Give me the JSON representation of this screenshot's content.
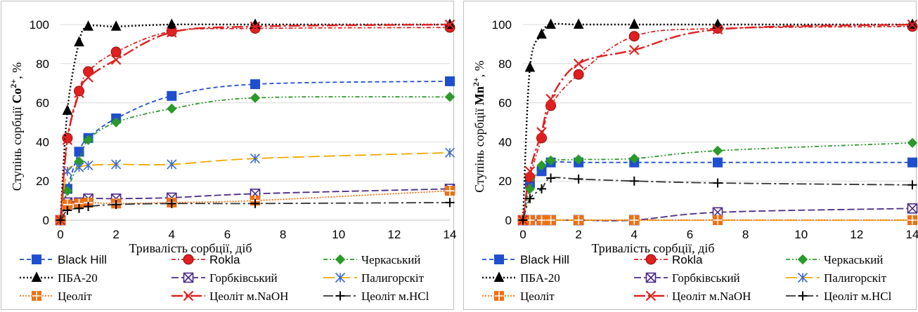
{
  "chart_data": [
    {
      "type": "line",
      "ylabel_prefix": "Ступінь сорбції ",
      "ylabel_ion": "Co",
      "ylabel_sup": "2+",
      "ylabel_suffix": ", %",
      "xlabel": "Тривалість сорбції, діб",
      "xlim": [
        0,
        14
      ],
      "ylim": [
        0,
        100
      ],
      "xticks": [
        0,
        2,
        4,
        6,
        8,
        10,
        12,
        14
      ],
      "yticks": [
        0,
        20,
        40,
        60,
        80,
        100
      ],
      "grid": "horizontal",
      "legend": "bottom",
      "series": [
        {
          "name": "Black Hill",
          "color": "#1f4fd0",
          "marker": "square",
          "dash": "6,4",
          "x": [
            0,
            0.25,
            0.67,
            1,
            2,
            4,
            7,
            14
          ],
          "y": [
            0,
            16,
            35,
            42,
            52,
            63.5,
            69.5,
            71
          ]
        },
        {
          "name": "Rokla",
          "color": "#e02020",
          "marker": "circle",
          "dash": "6,3,2,3",
          "x": [
            0,
            0.25,
            0.67,
            1,
            2,
            4,
            7,
            14
          ],
          "y": [
            0,
            42,
            66,
            76,
            86,
            96.5,
            98,
            98.5
          ]
        },
        {
          "name": "Черкаський",
          "color": "#2a9a2a",
          "marker": "diamond",
          "dash": "6,3,2,3,2,3",
          "x": [
            0,
            0.25,
            0.67,
            1,
            2,
            4,
            7,
            14
          ],
          "y": [
            0,
            15,
            30,
            41,
            50,
            57,
            62.5,
            63
          ]
        },
        {
          "name": "ПБА-20",
          "color": "#000000",
          "marker": "triangle",
          "dash": "2,3",
          "x": [
            0,
            0.25,
            0.67,
            1,
            2,
            4,
            7,
            14
          ],
          "y": [
            0,
            56,
            91,
            99,
            99,
            100,
            100,
            100
          ]
        },
        {
          "name": "Горбківський",
          "color": "#4a2a8a",
          "marker": "xsquare",
          "dash": "10,4",
          "x": [
            0,
            0.25,
            0.67,
            1,
            2,
            4,
            7,
            14
          ],
          "y": [
            0,
            9,
            9,
            11,
            11,
            11.5,
            13.5,
            16
          ]
        },
        {
          "name": "Палигорскіт",
          "color": "#f0a800",
          "marker": "star",
          "dash": "16,6",
          "x": [
            0,
            0.25,
            0.67,
            1,
            2,
            4,
            7,
            14
          ],
          "y": [
            0,
            25,
            27,
            28,
            28.5,
            28.5,
            31.5,
            34.5
          ]
        },
        {
          "name": "Цеоліт",
          "color": "#f07010",
          "marker": "plussquare",
          "dash": "2,2",
          "x": [
            0,
            0.25,
            0.67,
            1,
            2,
            4,
            7,
            14
          ],
          "y": [
            0,
            8,
            8.5,
            9,
            8.5,
            9,
            10,
            15
          ]
        },
        {
          "name": "Цеоліт м.NaOH",
          "color": "#e02020",
          "marker": "x",
          "dash": "16,4,3,4",
          "x": [
            0,
            0.25,
            0.67,
            1,
            2,
            4,
            7,
            14
          ],
          "y": [
            0,
            41,
            65,
            73,
            82,
            96,
            99,
            100
          ]
        },
        {
          "name": "Цеоліт м.HCl",
          "color": "#333333",
          "marker": "plus",
          "dash": "14,4,3,4",
          "x": [
            0,
            0.25,
            0.67,
            1,
            2,
            4,
            7,
            14
          ],
          "y": [
            0,
            5,
            6,
            7,
            8,
            8.5,
            8.5,
            9
          ]
        }
      ]
    },
    {
      "type": "line",
      "ylabel_prefix": "Ступінь сорбції ",
      "ylabel_ion": "Mn",
      "ylabel_sup": "2+",
      "ylabel_suffix": ", %",
      "xlabel": "Тривалість сорбції, діб",
      "xlim": [
        0,
        14
      ],
      "ylim": [
        0,
        100
      ],
      "xticks": [
        0,
        2,
        4,
        6,
        8,
        10,
        12,
        14
      ],
      "yticks": [
        0,
        20,
        40,
        60,
        80,
        100
      ],
      "grid": "horizontal",
      "legend": "bottom",
      "series": [
        {
          "name": "Black Hill",
          "color": "#1f4fd0",
          "marker": "square",
          "dash": "6,4",
          "x": [
            0,
            0.25,
            0.67,
            1,
            2,
            4,
            7,
            14
          ],
          "y": [
            0,
            19,
            25,
            29.5,
            29.5,
            29.5,
            29.5,
            29.5
          ]
        },
        {
          "name": "Rokla",
          "color": "#e02020",
          "marker": "circle",
          "dash": "6,3,2,3",
          "x": [
            0,
            0.25,
            0.67,
            1,
            2,
            4,
            7,
            14
          ],
          "y": [
            0,
            22,
            42,
            58.5,
            74.5,
            94,
            98,
            99
          ]
        },
        {
          "name": "Черкаський",
          "color": "#2a9a2a",
          "marker": "diamond",
          "dash": "6,3,2,3,2,3",
          "x": [
            0,
            0.25,
            0.67,
            1,
            2,
            4,
            7,
            14
          ],
          "y": [
            0,
            16,
            28,
            30.5,
            31,
            31.5,
            35.5,
            39.5
          ]
        },
        {
          "name": "ПБА-20",
          "color": "#000000",
          "marker": "triangle",
          "dash": "2,3",
          "x": [
            0,
            0.25,
            0.67,
            1,
            2,
            4,
            7,
            14
          ],
          "y": [
            0,
            78,
            95,
            100,
            100,
            100,
            100,
            100
          ]
        },
        {
          "name": "Горбківський",
          "color": "#4a2a8a",
          "marker": "xsquare",
          "dash": "10,4",
          "x": [
            0,
            0.25,
            0.67,
            1,
            2,
            4,
            7,
            14
          ],
          "y": [
            0,
            0,
            0,
            0,
            0,
            0,
            4,
            6
          ]
        },
        {
          "name": "Палигорскіт",
          "color": "#f0a800",
          "marker": "star",
          "dash": "16,6",
          "x": [
            0,
            0.25,
            0.67,
            1,
            2,
            4,
            7,
            14
          ],
          "y": [
            0,
            0,
            0,
            0,
            0,
            0,
            0,
            0
          ]
        },
        {
          "name": "Цеоліт",
          "color": "#f07010",
          "marker": "plussquare",
          "dash": "2,2",
          "x": [
            0,
            0.25,
            0.67,
            1,
            2,
            4,
            7,
            14
          ],
          "y": [
            0,
            0,
            0,
            0,
            0,
            0,
            0,
            0
          ]
        },
        {
          "name": "Цеоліт м.NaOH",
          "color": "#e02020",
          "marker": "x",
          "dash": "16,4,3,4",
          "x": [
            0,
            0.25,
            0.67,
            1,
            2,
            4,
            7,
            14
          ],
          "y": [
            0,
            25,
            45,
            62,
            80,
            87,
            97.5,
            100
          ]
        },
        {
          "name": "Цеоліт м.HCl",
          "color": "#333333",
          "marker": "plus",
          "dash": "14,4,3,4",
          "x": [
            0,
            0.25,
            0.67,
            1,
            2,
            4,
            7,
            14
          ],
          "y": [
            0,
            11,
            16,
            21.5,
            21,
            20,
            19,
            18
          ]
        }
      ]
    }
  ]
}
